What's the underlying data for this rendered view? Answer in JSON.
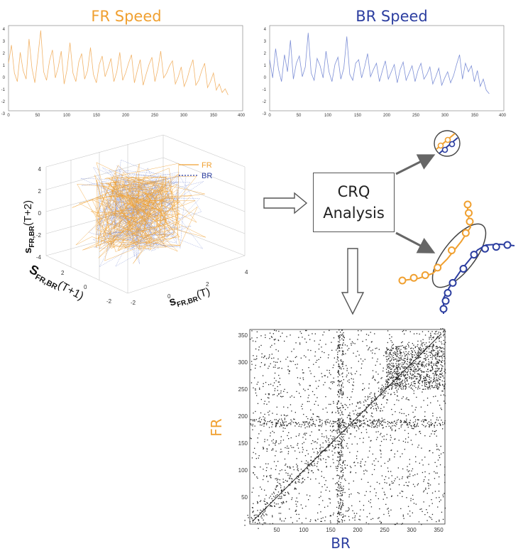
{
  "colors": {
    "fr": "#f0a030",
    "br": "#2c3ea0",
    "fr_line": "#f2b46a",
    "br_line": "#7d8fd6",
    "arrow": "#666666",
    "box": "#555555"
  },
  "top_left": {
    "title": "FR Speed",
    "y_ticks": [
      "4",
      "3",
      "2",
      "1",
      "0",
      "-1",
      "-2",
      "-3"
    ],
    "x_ticks": [
      "0",
      "50",
      "100",
      "150",
      "200",
      "250",
      "300",
      "350",
      "400"
    ]
  },
  "top_right": {
    "title": "BR Speed",
    "y_ticks": [
      "4",
      "3",
      "2",
      "1",
      "0",
      "-1",
      "-2",
      "-3"
    ],
    "x_ticks": [
      "0",
      "50",
      "100",
      "150",
      "200",
      "250",
      "300",
      "350",
      "400"
    ]
  },
  "phase_plot": {
    "legend": [
      {
        "name": "FR",
        "style": "solid"
      },
      {
        "name": "BR",
        "style": "dotted"
      }
    ],
    "z_ticks": [
      "4",
      "2",
      "0",
      "-2",
      "-4"
    ],
    "x_ticks": [
      "4",
      "2",
      "0",
      "-2"
    ],
    "y_ticks": [
      "2",
      "0",
      "-2"
    ],
    "z_label_main": "s",
    "z_label_sub": "FR,BR",
    "z_label_arg": "(T+2)",
    "y_label_main": "S",
    "y_label_sub": "FR,BR",
    "y_label_arg": "(T+1)",
    "x_label_main": "s",
    "x_label_sub": "FR,BR",
    "x_label_arg": "(T)"
  },
  "crq_box": {
    "line1": "CRQ",
    "line2": "Analysis"
  },
  "recurrence_plot": {
    "y_label": "FR",
    "x_label": "BR",
    "y_ticks": [
      "350",
      "300",
      "250",
      "200",
      "150",
      "100",
      "50"
    ],
    "x_ticks": [
      "50",
      "100",
      "150",
      "200",
      "250",
      "300",
      "350"
    ]
  },
  "chart_data": [
    {
      "type": "line",
      "title": "FR Speed",
      "series": [
        {
          "name": "FR",
          "values": [
            0.9,
            2.4,
            0.1,
            -0.6,
            1.8,
            0.3,
            -0.4,
            2.9,
            0.5,
            -0.7,
            1.4,
            3.6,
            0.2,
            -0.5,
            1.1,
            2.0,
            -0.3,
            0.6,
            1.9,
            -0.8,
            0.4,
            2.6,
            0.1,
            -0.6,
            1.0,
            1.7,
            -0.4,
            0.3,
            2.2,
            0.0,
            -0.7,
            0.8,
            1.5,
            -0.2,
            0.5,
            1.3,
            -0.6,
            0.2,
            1.8,
            -0.5,
            0.1,
            0.9,
            1.6,
            -0.7,
            0.3,
            1.2,
            -0.9,
            0.0,
            0.8,
            1.4,
            -0.6,
            0.4,
            1.9,
            -0.3,
            0.1,
            0.7,
            1.1,
            -0.8,
            -0.2,
            0.6,
            -1.0,
            -0.4,
            0.5,
            1.2,
            -0.9,
            -0.5,
            0.3,
            0.9,
            -1.1,
            -0.6,
            0.1,
            -1.3,
            -0.8,
            -1.5,
            -1.2,
            -1.7
          ]
        }
      ],
      "x_range": [
        0,
        375
      ],
      "xlim": [
        0,
        400
      ],
      "ylim": [
        -3,
        4
      ]
    },
    {
      "type": "line",
      "title": "BR Speed",
      "series": [
        {
          "name": "BR",
          "values": [
            1.2,
            -0.3,
            2.1,
            0.4,
            -0.6,
            1.6,
            0.2,
            2.8,
            -0.4,
            0.9,
            1.5,
            -0.2,
            0.6,
            3.4,
            0.1,
            -0.5,
            1.3,
            0.7,
            -0.3,
            1.9,
            0.2,
            -0.6,
            0.8,
            1.4,
            -0.4,
            0.5,
            3.1,
            0.0,
            -0.5,
            0.9,
            1.2,
            -0.3,
            0.6,
            1.7,
            -0.2,
            0.4,
            0.9,
            -0.6,
            0.3,
            1.1,
            -0.4,
            0.2,
            0.8,
            -0.7,
            0.4,
            1.0,
            -0.5,
            0.1,
            0.7,
            -0.6,
            0.3,
            0.9,
            -0.4,
            0.0,
            0.6,
            -0.8,
            -0.2,
            0.5,
            -0.9,
            -0.3,
            0.2,
            -0.7,
            -0.1,
            0.8,
            1.6,
            -0.4,
            0.9,
            0.2,
            0.7,
            -0.6,
            0.3,
            -1.0,
            -0.4,
            -1.3,
            -1.6
          ]
        }
      ],
      "x_range": [
        0,
        375
      ],
      "xlim": [
        0,
        400
      ],
      "ylim": [
        -3,
        4
      ]
    },
    {
      "type": "scatter",
      "title": "",
      "series": [
        {
          "name": "FR"
        },
        {
          "name": "BR"
        }
      ],
      "xlim": [
        -2,
        4
      ],
      "ylim": [
        -2,
        2
      ],
      "zlim": [
        -4,
        4
      ]
    },
    {
      "type": "heatmap",
      "title": "",
      "xlabel": "BR",
      "ylabel": "FR",
      "xlim": [
        0,
        360
      ],
      "ylim": [
        0,
        360
      ]
    }
  ]
}
